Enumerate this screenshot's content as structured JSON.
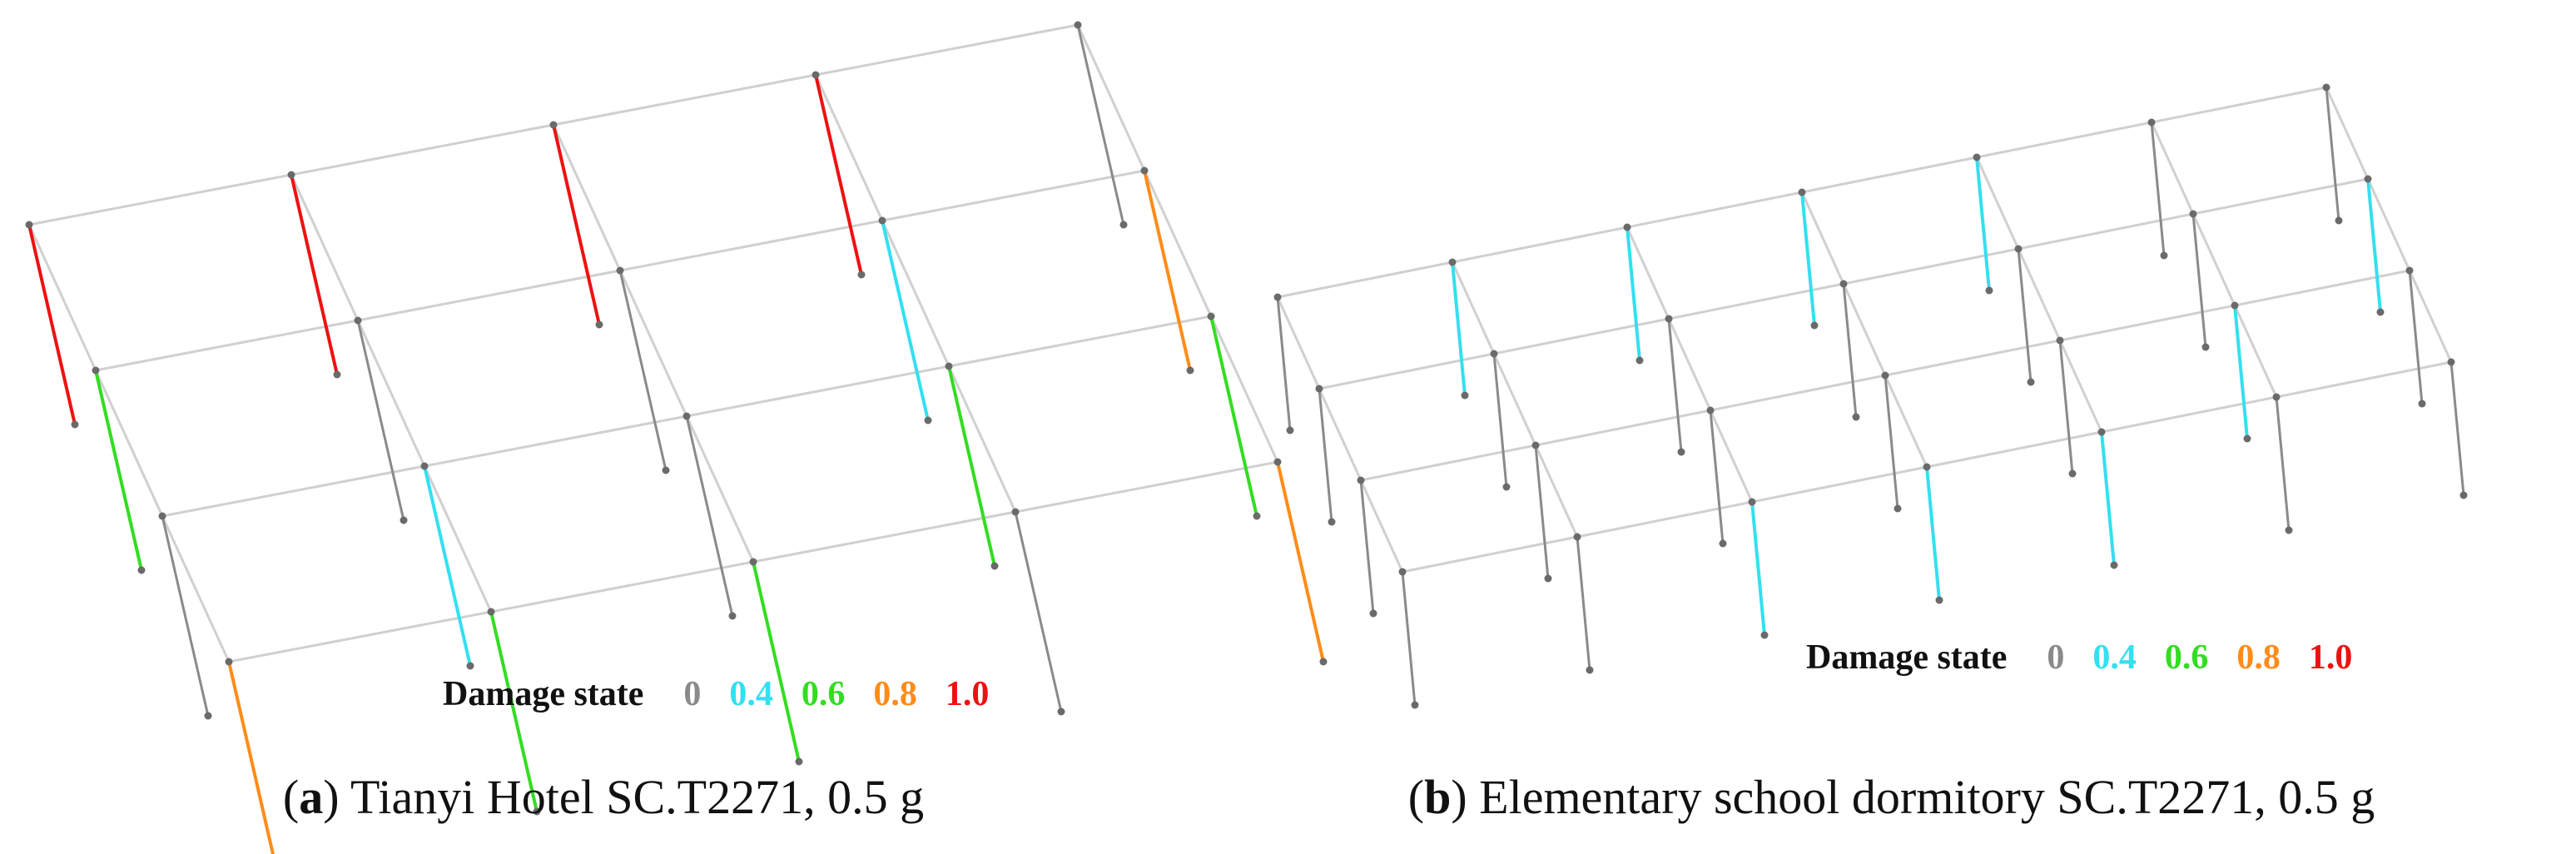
{
  "figures": [
    {
      "id": "a",
      "caption": {
        "letter": "a",
        "text": "Tianyi Hotel SC.T2271, 0.5 g"
      },
      "legend": {
        "title": "Damage state",
        "levels": [
          {
            "label": "0",
            "value": 0,
            "color": "#8a8a8a"
          },
          {
            "label": "0.4",
            "value": 0.4,
            "color": "#33e0f0"
          },
          {
            "label": "0.6",
            "value": 0.6,
            "color": "#33dd22"
          },
          {
            "label": "0.8",
            "value": 0.8,
            "color": "#ff8c1a"
          },
          {
            "label": "1.0",
            "value": 1.0,
            "color": "#ee1111"
          }
        ]
      }
    },
    {
      "id": "b",
      "caption": {
        "letter": "b",
        "text": "Elementary school dormitory SC.T2271, 0.5 g"
      },
      "legend": {
        "title": "Damage state",
        "levels": [
          {
            "label": "0",
            "value": 0,
            "color": "#8a8a8a"
          },
          {
            "label": "0.4",
            "value": 0.4,
            "color": "#33e0f0"
          },
          {
            "label": "0.6",
            "value": 0.6,
            "color": "#33dd22"
          },
          {
            "label": "0.8",
            "value": 0.8,
            "color": "#ff8c1a"
          },
          {
            "label": "1.0",
            "value": 1.0,
            "color": "#ee1111"
          }
        ]
      }
    }
  ]
}
